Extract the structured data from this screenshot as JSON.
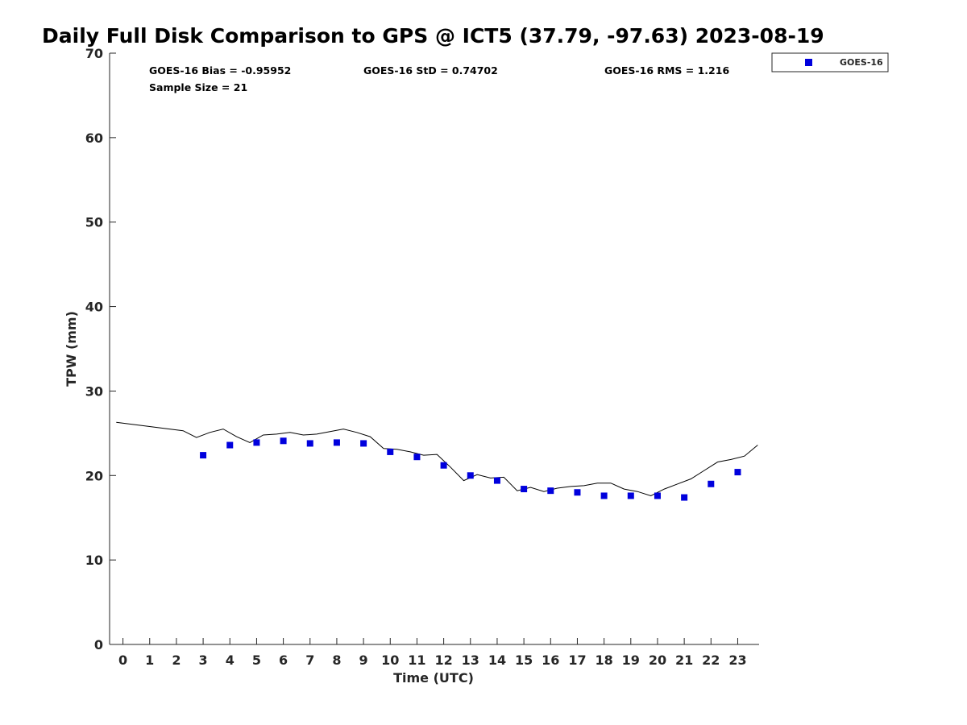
{
  "chart_data": {
    "type": "scatter",
    "title": "Daily Full Disk Comparison to GPS @ ICT5 (37.79, -97.63) 2023-08-19",
    "xlabel": "Time (UTC)",
    "ylabel": "TPW (mm)",
    "xlim": [
      -0.5,
      23.8
    ],
    "ylim": [
      0,
      70
    ],
    "xticks": [
      0,
      1,
      2,
      3,
      4,
      5,
      6,
      7,
      8,
      9,
      10,
      11,
      12,
      13,
      14,
      15,
      16,
      17,
      18,
      19,
      20,
      21,
      22,
      23
    ],
    "yticks": [
      0,
      10,
      20,
      30,
      40,
      50,
      60,
      70
    ],
    "grid": false,
    "legend_position": "top-right",
    "stats": [
      "GOES-16 Bias = -0.95952",
      "GOES-16 StD = 0.74702",
      "GOES-16 RMS = 1.216",
      "Sample Size = 21"
    ],
    "series": [
      {
        "name": "GOES-16",
        "kind": "scatter",
        "marker": "square",
        "color": "#0000dd",
        "x": [
          3,
          4,
          5,
          6,
          7,
          8,
          9,
          10,
          11,
          12,
          13,
          14,
          15,
          16,
          17,
          18,
          19,
          20,
          21,
          22,
          23
        ],
        "y": [
          22.4,
          23.6,
          23.9,
          24.1,
          23.8,
          23.9,
          23.8,
          22.8,
          22.2,
          21.2,
          20.0,
          19.4,
          18.4,
          18.2,
          18.0,
          17.6,
          17.6,
          17.6,
          17.4,
          19.0,
          20.4
        ]
      },
      {
        "kind": "line",
        "color": "#000000",
        "x": [
          -0.25,
          2.25,
          2.75,
          3.25,
          3.75,
          4.25,
          4.75,
          5.25,
          5.75,
          6.25,
          6.75,
          7.25,
          7.75,
          8.25,
          8.75,
          9.25,
          9.75,
          10.25,
          10.75,
          11.25,
          11.75,
          12.25,
          12.75,
          13.25,
          13.75,
          14.25,
          14.75,
          15.25,
          15.75,
          16.25,
          16.75,
          17.25,
          17.75,
          18.25,
          18.75,
          19.25,
          19.75,
          20.25,
          20.75,
          21.25,
          21.75,
          22.25,
          22.75,
          23.25,
          23.75
        ],
        "y": [
          26.3,
          25.3,
          24.5,
          25.1,
          25.5,
          24.6,
          23.9,
          24.8,
          24.9,
          25.1,
          24.8,
          24.9,
          25.2,
          25.5,
          25.1,
          24.6,
          23.2,
          23.1,
          22.8,
          22.4,
          22.5,
          21.0,
          19.4,
          20.1,
          19.7,
          19.8,
          18.2,
          18.6,
          18.1,
          18.5,
          18.7,
          18.8,
          19.1,
          19.1,
          18.4,
          18.1,
          17.6,
          18.4,
          19.0,
          19.6,
          20.6,
          21.6,
          21.9,
          22.3,
          23.6
        ]
      }
    ]
  }
}
